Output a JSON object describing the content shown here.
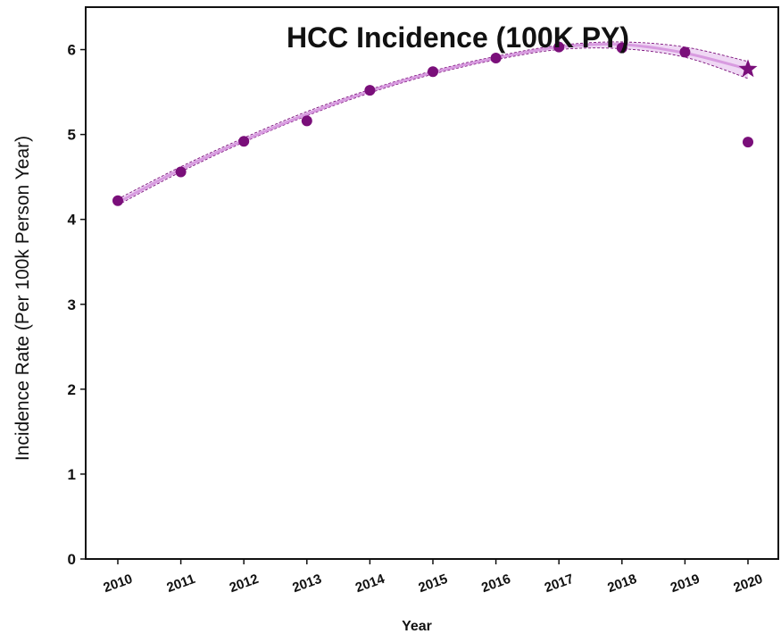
{
  "chart_data": {
    "type": "scatter",
    "title": "HCC Incidence (100K PY)",
    "xlabel": "Year",
    "ylabel": "Incidence Rate (Per 100k Person Year)",
    "xlim": [
      2010,
      2020
    ],
    "ylim": [
      0,
      6.5
    ],
    "yticks": [
      0,
      1,
      2,
      3,
      4,
      5,
      6
    ],
    "categories": [
      "2010",
      "2011",
      "2012",
      "2013",
      "2014",
      "2015",
      "2016",
      "2017",
      "2018",
      "2019",
      "2020"
    ],
    "series": [
      {
        "values": [
          4.22,
          4.56,
          4.92,
          5.16,
          5.52,
          5.74,
          5.9,
          6.03,
          6.02,
          5.97,
          4.91
        ],
        "marker": "circle",
        "color": "#7a0f7a"
      },
      {
        "x": [
          "2020"
        ],
        "values": [
          5.77
        ],
        "marker": "star",
        "color": "#7a0f7a"
      },
      {
        "type": "line",
        "fit": "quadratic",
        "x": [
          "2010",
          "2011",
          "2012",
          "2013",
          "2014",
          "2015",
          "2016",
          "2017",
          "2018",
          "2019",
          "2020"
        ],
        "values": [
          4.2,
          4.59,
          4.93,
          5.24,
          5.51,
          5.73,
          5.9,
          6.03,
          6.06,
          5.96,
          5.77
        ],
        "lower": [
          4.17,
          4.56,
          4.91,
          5.22,
          5.49,
          5.71,
          5.88,
          6.0,
          6.01,
          5.91,
          5.66
        ],
        "upper": [
          4.24,
          4.62,
          4.96,
          5.27,
          5.53,
          5.75,
          5.92,
          6.05,
          6.09,
          6.03,
          5.86
        ],
        "color": "#d89be0",
        "band_color": "#7a0f7a"
      }
    ],
    "grid": false,
    "legend": "none"
  }
}
